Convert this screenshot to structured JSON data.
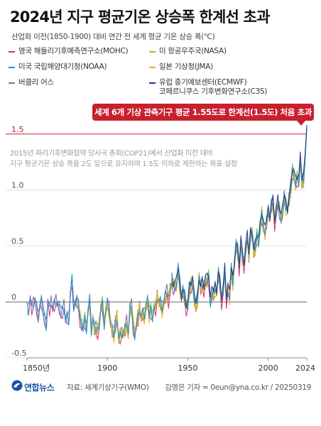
{
  "title": "2024년 지구 평균기온 상승폭 한계선 초과",
  "subtitle": "산업화 이전(1850-1900) 대비 연간 전 세계 평균 기온 상승 폭(℃)",
  "callout": "세계 6개 기상 관측기구 평균 1.55도로 한계선(1.5도) 처음 초과",
  "note_lines": [
    "2015년 파리기후변화협약 당사국 총회(COP21)에서 산업화 이전 대비",
    "지구 평균기온 상승 폭을 2도 밑으로 유지하며 1.5도 이하로 제한하는 목표 설정"
  ],
  "footer": {
    "logo_text": "연합뉴스",
    "source": "자료: 세계기상기구(WMO)",
    "credit": "김영은 기자 = 0eun@yna.co.kr / 20250319"
  },
  "colors": {
    "MOHC": "#d6307a",
    "NASA": "#8cc63e",
    "NOAA": "#1f8fd0",
    "JMA": "#f2b21c",
    "Berkeley": "#8a6aa0",
    "ECMWF": "#1b3f8c",
    "callout": "#c8202f",
    "threshold": "#c8202f"
  },
  "chart_data": {
    "type": "line",
    "title": "2024년 지구 평균기온 상승폭 한계선 초과",
    "ylabel": "산업화 이전(1850-1900) 대비 연간 전 세계 평균 기온 상승 폭(℃)",
    "xlim": [
      1850,
      2024
    ],
    "ylim": [
      -0.5,
      1.6
    ],
    "y_ticks": [
      "1.5",
      "1.0",
      "0.5",
      "0",
      "-0.5"
    ],
    "y_tick_values": [
      1.5,
      1.0,
      0.5,
      0,
      -0.5
    ],
    "x_ticks": [
      "1850년",
      "1900",
      "1950",
      "2000",
      "2024"
    ],
    "x_tick_values": [
      1850,
      1900,
      1950,
      2000,
      2024
    ],
    "threshold": 1.5,
    "grid": true,
    "legend_position": "top",
    "anomaly_1850_2024": [
      -0.02,
      -0.06,
      0.05,
      -0.04,
      -0.01,
      0.02,
      -0.05,
      -0.15,
      -0.05,
      0.0,
      -0.1,
      -0.12,
      -0.2,
      0.02,
      -0.05,
      0.0,
      -0.06,
      -0.02,
      0.0,
      -0.03,
      -0.05,
      -0.12,
      -0.06,
      -0.02,
      -0.15,
      -0.12,
      -0.16,
      0.08,
      0.2,
      -0.05,
      -0.02,
      0.0,
      -0.05,
      -0.14,
      -0.2,
      -0.22,
      -0.16,
      -0.24,
      -0.08,
      0.02,
      -0.27,
      -0.16,
      -0.24,
      -0.25,
      -0.25,
      -0.18,
      -0.03,
      -0.02,
      -0.2,
      -0.08,
      -0.01,
      -0.06,
      -0.2,
      -0.26,
      -0.3,
      -0.18,
      -0.12,
      -0.32,
      -0.3,
      -0.28,
      -0.28,
      -0.24,
      -0.18,
      -0.3,
      -0.07,
      -0.05,
      -0.2,
      -0.28,
      -0.2,
      -0.14,
      -0.05,
      -0.14,
      -0.1,
      -0.12,
      -0.05,
      0.0,
      -0.12,
      -0.06,
      -0.12,
      -0.04,
      -0.05,
      0.05,
      0.0,
      0.0,
      -0.06,
      -0.02,
      0.04,
      0.08,
      0.03,
      0.12,
      0.18,
      0.14,
      0.14,
      0.14,
      0.3,
      0.15,
      0.04,
      0.09,
      0.03,
      -0.04,
      -0.02,
      0.1,
      0.15,
      0.18,
      0.0,
      -0.02,
      0.02,
      0.22,
      0.12,
      0.15,
      0.13,
      0.2,
      0.18,
      0.22,
      0.0,
      0.05,
      0.08,
      0.12,
      0.09,
      0.25,
      0.15,
      0.02,
      0.12,
      0.27,
      0.02,
      0.12,
      0.02,
      0.3,
      0.18,
      0.35,
      0.5,
      0.45,
      0.32,
      0.55,
      0.38,
      0.33,
      0.48,
      0.55,
      0.42,
      0.6,
      0.62,
      0.45,
      0.48,
      0.6,
      0.55,
      0.65,
      0.78,
      0.68,
      0.6,
      0.72,
      0.8,
      0.75,
      0.86,
      0.88,
      0.72,
      0.82,
      0.88,
      0.82,
      0.75,
      0.78,
      0.95,
      0.85,
      0.82,
      0.92,
      1.0,
      1.18,
      1.15,
      1.05,
      1.1,
      1.08,
      1.25,
      1.08,
      1.1,
      1.3,
      1.55
    ],
    "series": [
      {
        "name": "영국 해들리기후예측연구소(MOHC)",
        "color_key": "MOHC",
        "start": 1850,
        "bias": -0.03
      },
      {
        "name": "미 항공우주국(NASA)",
        "color_key": "NASA",
        "start": 1880,
        "bias": 0.01
      },
      {
        "name": "미국 국립해양대기청(NOAA)",
        "color_key": "NOAA",
        "start": 1850,
        "bias": 0.0
      },
      {
        "name": "일본 기상청(JMA)",
        "color_key": "JMA",
        "start": 1891,
        "bias": -0.02
      },
      {
        "name": "버클리 어스",
        "color_key": "Berkeley",
        "start": 1850,
        "bias": 0.02
      },
      {
        "name": "유럽 중기예보센터(ECMWF) 코페르니쿠스 기후변화연구소(C3S)",
        "name_lines": [
          "유럽 중기예보센터(ECMWF)",
          "코페르니쿠스 기후변화연구소(C3S)"
        ],
        "color_key": "ECMWF",
        "start": 1940,
        "bias": 0.03
      }
    ]
  }
}
